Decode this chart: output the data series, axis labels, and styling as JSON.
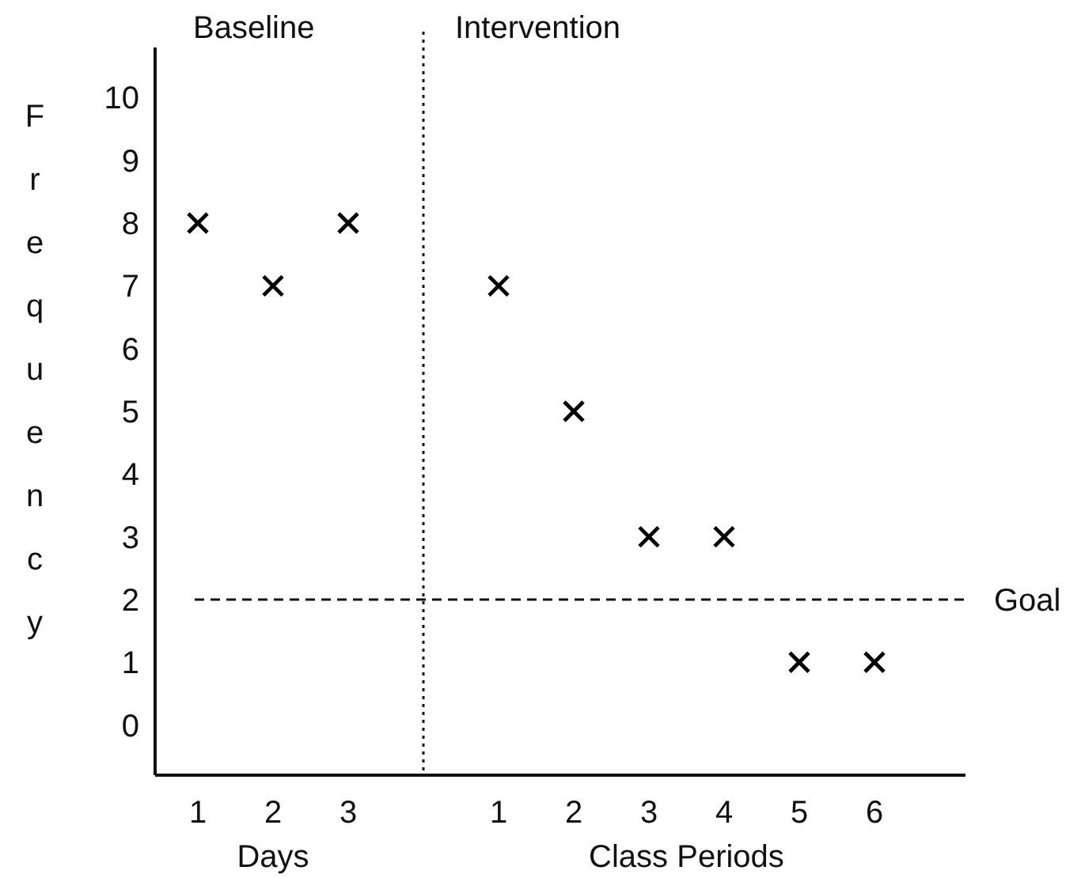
{
  "chart_data": {
    "type": "scatter",
    "ylabel": "Frequency",
    "marker": "cross",
    "categories": [
      "1",
      "2",
      "3",
      null,
      "1",
      "2",
      "3",
      "4",
      "5",
      "6"
    ],
    "ylim": [
      -0.8,
      10.8
    ],
    "yticks": [
      0,
      1,
      2,
      3,
      4,
      5,
      6,
      7,
      8,
      9,
      10
    ],
    "series": [
      {
        "color": "#000000",
        "values": [
          8,
          7,
          8,
          null,
          7,
          5,
          3,
          3,
          1,
          1
        ]
      }
    ],
    "ref_lines": [
      {
        "axis": "y",
        "value": 2,
        "label": "Goal",
        "line_style": "dashed"
      }
    ],
    "annotations": [
      "Baseline",
      "Intervention",
      "Days",
      "Class Periods"
    ]
  }
}
